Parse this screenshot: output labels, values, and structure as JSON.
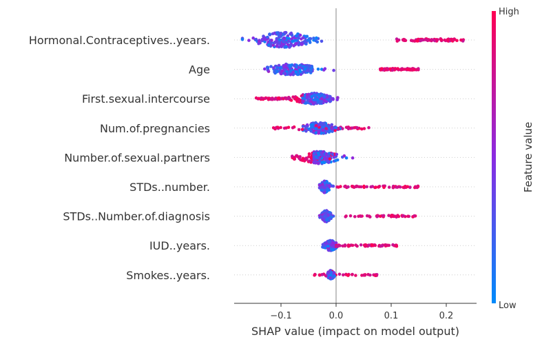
{
  "chart_data": {
    "type": "scatter",
    "subtype": "shap-beeswarm",
    "title": "",
    "xlabel": "SHAP value (impact on model output)",
    "xlim": [
      -0.185,
      0.255
    ],
    "x_ticks": [
      -0.1,
      0.0,
      0.1,
      0.2
    ],
    "x_tick_labels": [
      "−0.1",
      "0.0",
      "0.1",
      "0.2"
    ],
    "features": [
      {
        "name": "Hormonal.Contraceptives..years.",
        "center": -0.095,
        "spread": 0.045,
        "min": -0.17,
        "max": 0.24,
        "high_min": 0.11,
        "high_max": 0.24,
        "low_min": -0.17,
        "low_max": 0.08,
        "count": 260,
        "width": 22
      },
      {
        "name": "Age",
        "center": -0.08,
        "spread": 0.04,
        "min": -0.13,
        "max": 0.15,
        "high_min": 0.08,
        "high_max": 0.15,
        "low_min": -0.13,
        "low_max": 0.07,
        "count": 240,
        "width": 16
      },
      {
        "name": "First.sexual.intercourse",
        "center": -0.04,
        "spread": 0.03,
        "min": -0.145,
        "max": 0.05,
        "high_min": -0.145,
        "high_max": -0.06,
        "low_min": -0.06,
        "low_max": 0.05,
        "count": 230,
        "width": 16
      },
      {
        "name": "Num.of.pregnancies",
        "center": -0.03,
        "spread": 0.025,
        "min": -0.115,
        "max": 0.06,
        "high_min": -0.115,
        "high_max": 0.06,
        "low_min": -0.06,
        "low_max": 0.01,
        "count": 220,
        "width": 17
      },
      {
        "name": "Number.of.sexual.partners",
        "center": -0.03,
        "spread": 0.03,
        "min": -0.08,
        "max": 0.065,
        "high_min": -0.08,
        "high_max": 0.0,
        "low_min": -0.04,
        "low_max": 0.065,
        "count": 220,
        "width": 18
      },
      {
        "name": "STDs..number.",
        "center": -0.02,
        "spread": 0.008,
        "min": -0.03,
        "max": 0.15,
        "high_min": 0.0,
        "high_max": 0.15,
        "low_min": -0.03,
        "low_max": 0.0,
        "count": 200,
        "width": 17
      },
      {
        "name": "STDs..Number.of.diagnosis",
        "center": -0.018,
        "spread": 0.008,
        "min": -0.03,
        "max": 0.145,
        "high_min": 0.015,
        "high_max": 0.145,
        "low_min": -0.03,
        "low_max": 0.0,
        "count": 200,
        "width": 17
      },
      {
        "name": "IUD..years.",
        "center": -0.01,
        "spread": 0.01,
        "min": -0.035,
        "max": 0.11,
        "high_min": 0.0,
        "high_max": 0.11,
        "low_min": -0.035,
        "low_max": 0.0,
        "count": 190,
        "width": 15
      },
      {
        "name": "Smokes..years.",
        "center": -0.01,
        "spread": 0.006,
        "min": -0.04,
        "max": 0.075,
        "high_min": -0.04,
        "high_max": 0.075,
        "low_min": -0.015,
        "low_max": 0.0,
        "count": 170,
        "width": 13
      }
    ],
    "colorbar": {
      "label": "Feature value",
      "high_label": "High",
      "low_label": "Low",
      "low_color": "#008bfb",
      "mid_color": "#8a2be2",
      "high_color": "#ff0052"
    },
    "grid": false,
    "legend": "colorbar-right"
  }
}
